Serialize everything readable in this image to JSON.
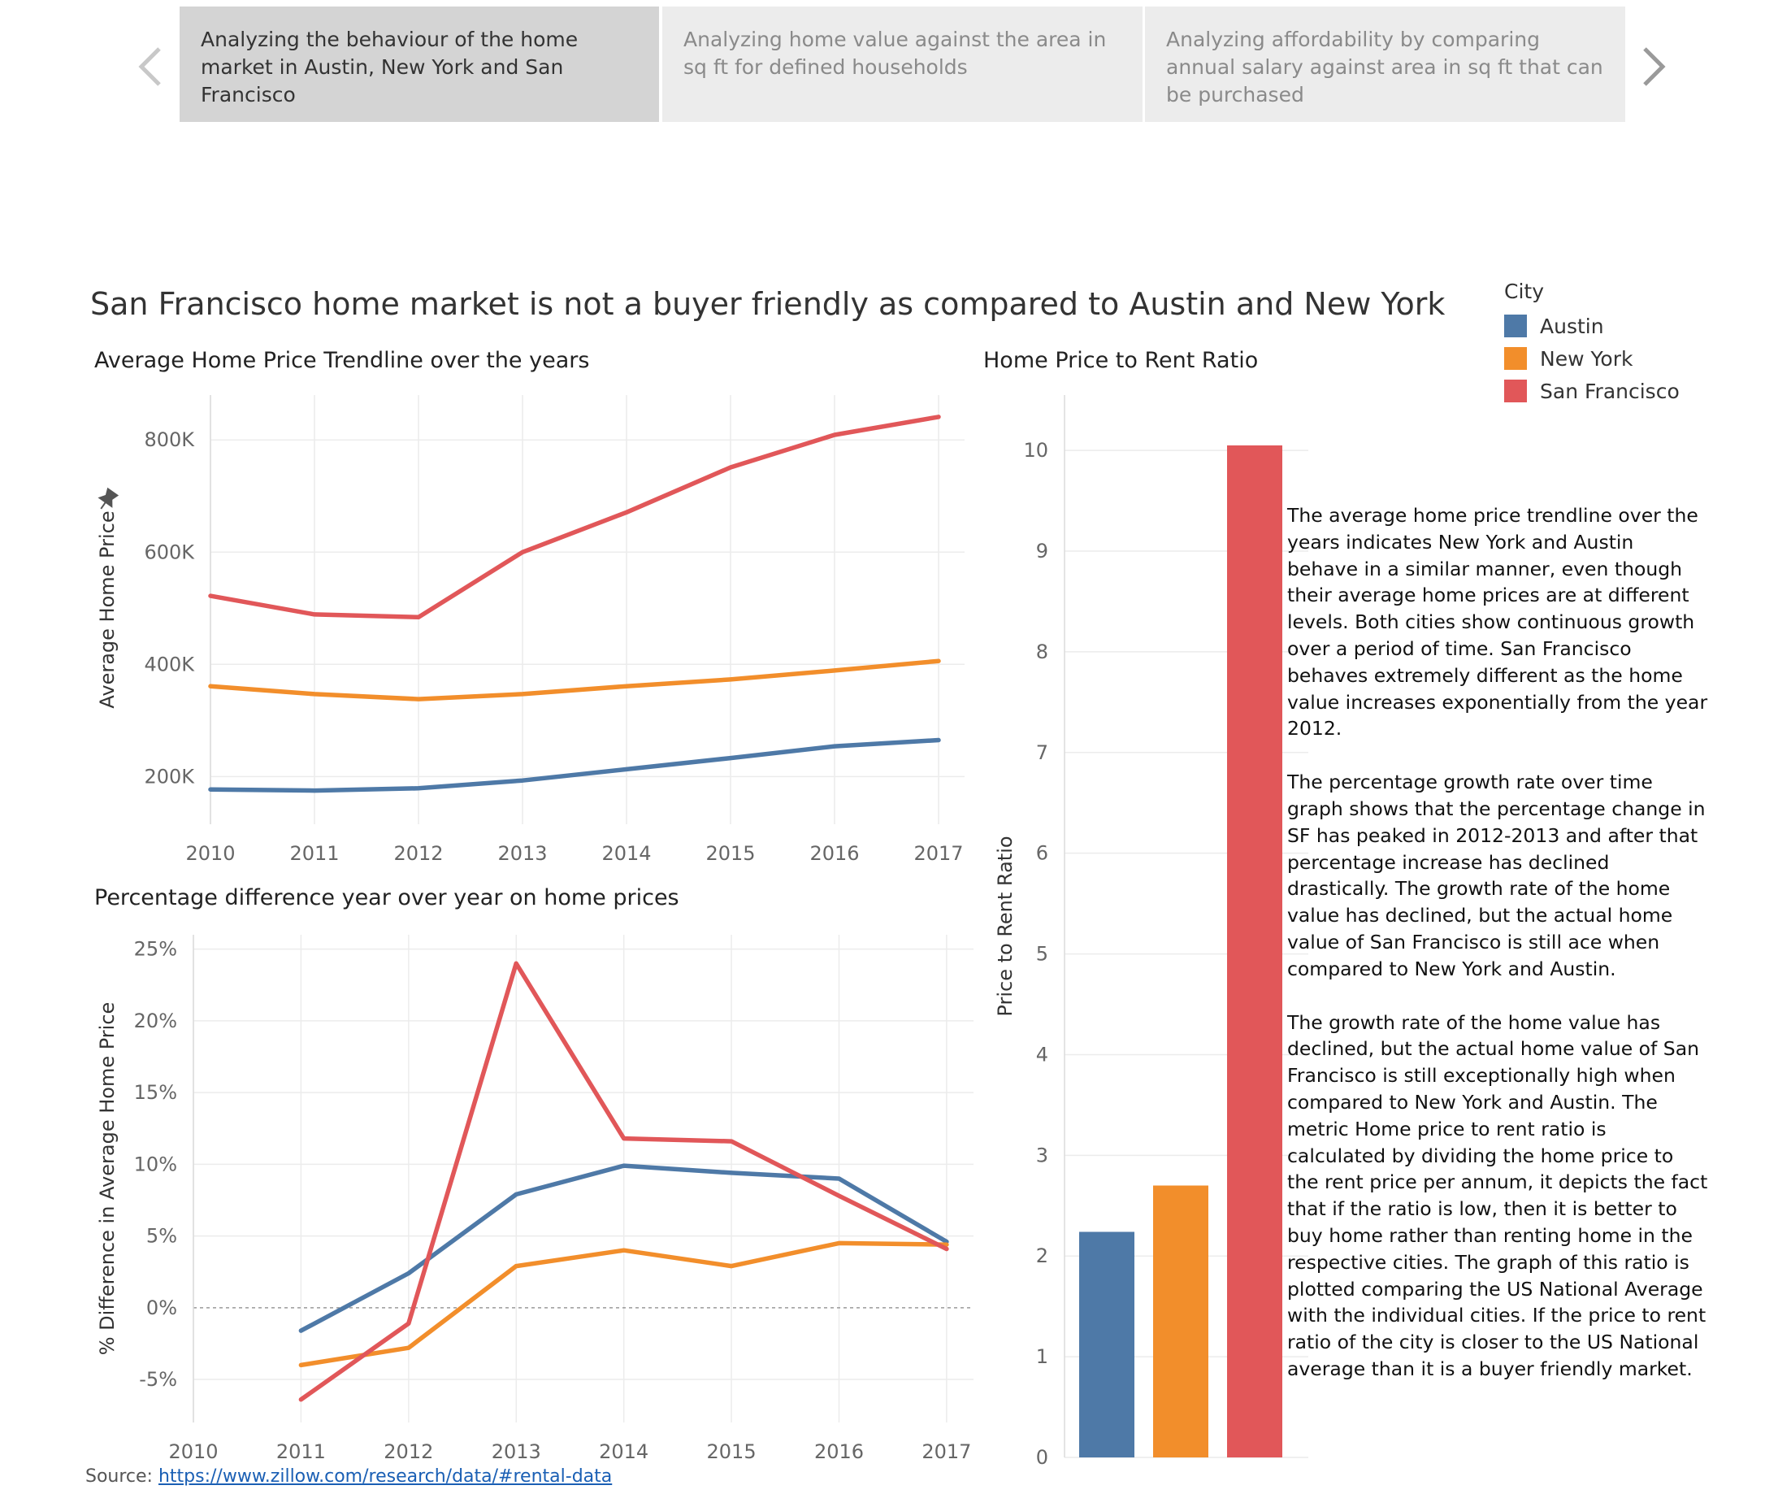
{
  "story": {
    "tabs": [
      {
        "label": "Analyzing the behaviour of the home market in Austin, New York and San Francisco"
      },
      {
        "label": "Analyzing home value against the area in sq ft for defined households"
      },
      {
        "label": "Analyzing affordability by comparing annual salary against area in sq ft that can be purchased"
      }
    ],
    "active_tab": 0
  },
  "dashboard_title": "San Francisco home market is not a buyer friendly as compared to Austin and New York",
  "colors": {
    "Austin": "#4e79a7",
    "New York": "#f28e2b",
    "San Francisco": "#e15759"
  },
  "legend": {
    "title": "City",
    "items": [
      {
        "label": "Austin",
        "color": "#4e79a7"
      },
      {
        "label": "New York",
        "color": "#f28e2b"
      },
      {
        "label": "San Francisco",
        "color": "#e15759"
      }
    ]
  },
  "narrative": [
    "The average home price trendline over the years indicates New York and Austin behave in a similar manner, even though their average home prices are at different levels. Both cities show continuous growth over a period of time. San Francisco behaves extremely different as the home value increases exponentially from the year 2012.",
    "The percentage growth rate over time graph shows that the percentage change in SF has peaked in 2012-2013 and after that percentage increase has declined drastically. The growth rate of the home value has declined, but the actual home value of San Francisco is still ace when compared to New York and Austin.",
    "The growth rate of the home value has declined, but the actual home value of San Francisco is still exceptionally high when compared to New York and Austin. The metric Home price to rent ratio is calculated by dividing the home price to the rent price per annum, it depicts the fact that if the ratio is low, then it is better to buy home rather than renting home in the respective cities. The graph of this ratio is plotted comparing the US National Average with the individual cities. If the price to rent ratio of the city is closer to the US National average than it is a buyer friendly market."
  ],
  "source": {
    "label": "Source:",
    "link_text": "https://www.zillow.com/research/data/#rental-data"
  },
  "chart_data": [
    {
      "id": "avg-price",
      "type": "line",
      "title": "Average Home Price Trendline over the years",
      "ylabel": "Average Home Price",
      "xlabel": "",
      "x": [
        2010,
        2011,
        2012,
        2013,
        2014,
        2015,
        2016,
        2017
      ],
      "x_tick_labels": [
        "2010",
        "2011",
        "2012",
        "2013",
        "2014",
        "2015",
        "2016",
        "2017"
      ],
      "xlim": [
        2010,
        2017.25
      ],
      "ylim": [
        115000,
        880000
      ],
      "yticks": [
        200000,
        400000,
        600000,
        800000
      ],
      "ytick_labels": [
        "200K",
        "400K",
        "600K",
        "800K"
      ],
      "grid": true,
      "series": [
        {
          "name": "Austin",
          "values": [
            177000,
            175000,
            179000,
            193000,
            213000,
            233000,
            254000,
            265000
          ]
        },
        {
          "name": "New York",
          "values": [
            361000,
            347000,
            338000,
            347000,
            361000,
            373000,
            389000,
            406000
          ]
        },
        {
          "name": "San Francisco",
          "values": [
            522000,
            489000,
            484000,
            600000,
            671000,
            751000,
            809000,
            841000
          ]
        }
      ]
    },
    {
      "id": "pct-diff",
      "type": "line",
      "title": "Percentage difference year over year on home prices",
      "ylabel": "% Difference in Average Home Price",
      "xlabel": "",
      "x": [
        2011,
        2012,
        2013,
        2014,
        2015,
        2016,
        2017
      ],
      "x_tick_labels": [
        "2010",
        "2011",
        "2012",
        "2013",
        "2014",
        "2015",
        "2016",
        "2017"
      ],
      "x_tick_values": [
        2010,
        2011,
        2012,
        2013,
        2014,
        2015,
        2016,
        2017
      ],
      "xlim": [
        2010,
        2017.25
      ],
      "ylim": [
        -8,
        26
      ],
      "yticks": [
        -5,
        0,
        5,
        10,
        15,
        20,
        25
      ],
      "ytick_labels": [
        "-5%",
        "0%",
        "5%",
        "10%",
        "15%",
        "20%",
        "25%"
      ],
      "zero_line": true,
      "grid": true,
      "series": [
        {
          "name": "Austin",
          "values": [
            -1.6,
            2.4,
            7.9,
            9.9,
            9.4,
            9.0,
            4.6
          ]
        },
        {
          "name": "New York",
          "values": [
            -4.0,
            -2.8,
            2.9,
            4.0,
            2.9,
            4.5,
            4.4
          ]
        },
        {
          "name": "San Francisco",
          "values": [
            -6.4,
            -1.1,
            24.0,
            11.8,
            11.6,
            7.8,
            4.1
          ]
        }
      ]
    },
    {
      "id": "price-rent",
      "type": "bar",
      "title": "Home Price to Rent Ratio",
      "ylabel": "Price to Rent Ratio",
      "xlabel": "",
      "categories": [
        "Austin",
        "New York",
        "San Francisco"
      ],
      "values": [
        2.24,
        2.7,
        10.05
      ],
      "ylim": [
        0,
        10.55
      ],
      "yticks": [
        0,
        1,
        2,
        3,
        4,
        5,
        6,
        7,
        8,
        9,
        10
      ],
      "ytick_labels": [
        "0",
        "1",
        "2",
        "3",
        "4",
        "5",
        "6",
        "7",
        "8",
        "9",
        "10"
      ],
      "grid": true
    }
  ]
}
